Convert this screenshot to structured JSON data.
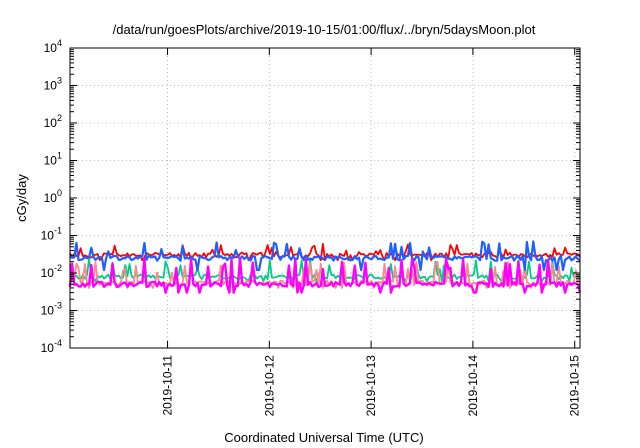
{
  "chart_data": {
    "type": "line",
    "title": "/data/run/goesPlots/archive/2019-10-15/01:00/flux/../bryn/5daysMoon.plot",
    "xlabel": "Coordinated Universal Time (UTC)",
    "ylabel": "cGy/day",
    "yscale": "log",
    "ylim": [
      0.0001,
      10000
    ],
    "y_ticks": [
      {
        "base": "10",
        "exp": "-4",
        "value": 0.0001
      },
      {
        "base": "10",
        "exp": "-3",
        "value": 0.001
      },
      {
        "base": "10",
        "exp": "-2",
        "value": 0.01
      },
      {
        "base": "10",
        "exp": "-1",
        "value": 0.1
      },
      {
        "base": "10",
        "exp": "0",
        "value": 1
      },
      {
        "base": "10",
        "exp": "1",
        "value": 10
      },
      {
        "base": "10",
        "exp": "2",
        "value": 100
      },
      {
        "base": "10",
        "exp": "3",
        "value": 1000
      },
      {
        "base": "10",
        "exp": "4",
        "value": 10000
      }
    ],
    "xlim": [
      "2019-10-10T01:00",
      "2019-10-15T01:15"
    ],
    "x_ticks": [
      "2019-10-11",
      "2019-10-12",
      "2019-10-13",
      "2019-10-14",
      "2019-10-15"
    ],
    "grid": true,
    "series": [
      {
        "color": "#ff0000",
        "base": 0.03,
        "low": 0.022,
        "high": 0.06,
        "seed": 11
      },
      {
        "color": "#00cc88",
        "base": 0.008,
        "low": 0.006,
        "high": 0.025,
        "seed": 23
      },
      {
        "color": "#ff8888",
        "base": 0.0055,
        "low": 0.004,
        "high": 0.02,
        "seed": 37
      },
      {
        "color": "#1f5fff",
        "base": 0.025,
        "low": 0.012,
        "high": 0.07,
        "seed": 41
      },
      {
        "color": "#ff00ff",
        "base": 0.005,
        "low": 0.003,
        "high": 0.025,
        "seed": 53
      }
    ]
  }
}
